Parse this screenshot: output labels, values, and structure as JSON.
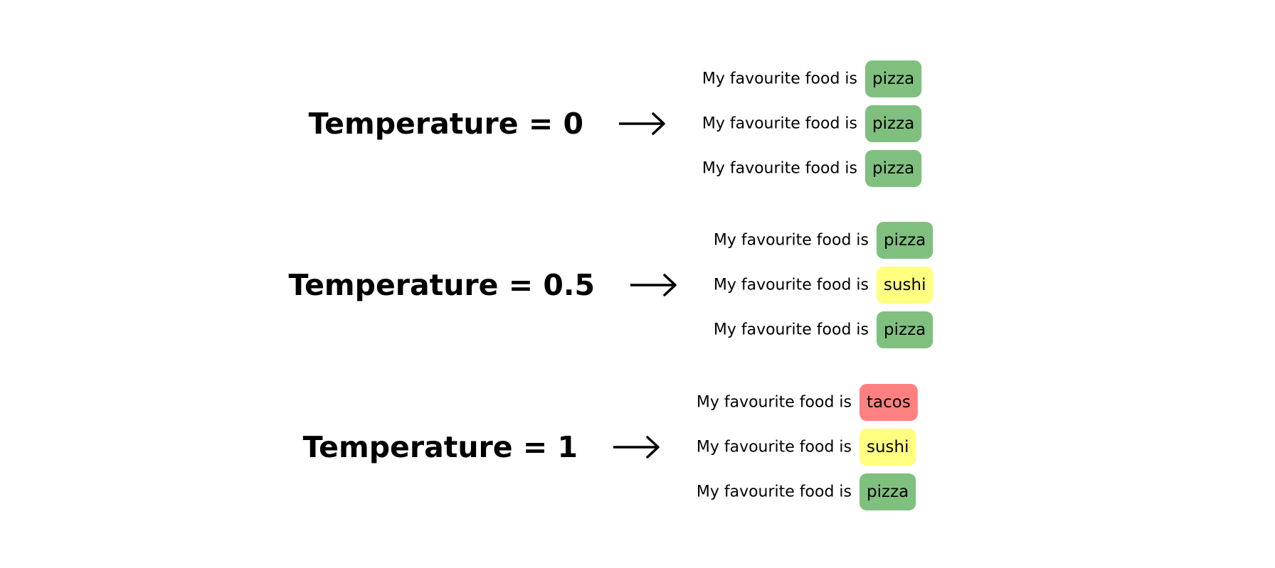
{
  "groups": [
    {
      "label": "Temperature = 0",
      "rows": [
        {
          "prefix": "My favourite food is",
          "token": "pizza",
          "color": "#80c07f"
        },
        {
          "prefix": "My favourite food is",
          "token": "pizza",
          "color": "#80c07f"
        },
        {
          "prefix": "My favourite food is",
          "token": "pizza",
          "color": "#80c07f"
        }
      ]
    },
    {
      "label": "Temperature = 0.5",
      "rows": [
        {
          "prefix": "My favourite food is",
          "token": "pizza",
          "color": "#80c07f"
        },
        {
          "prefix": "My favourite food is",
          "token": "sushi",
          "color": "#ffff80"
        },
        {
          "prefix": "My favourite food is",
          "token": "pizza",
          "color": "#80c07f"
        }
      ]
    },
    {
      "label": "Temperature = 1",
      "rows": [
        {
          "prefix": "My favourite food is",
          "token": "tacos",
          "color": "#ff8080"
        },
        {
          "prefix": "My favourite food is",
          "token": "sushi",
          "color": "#ffff80"
        },
        {
          "prefix": "My favourite food is",
          "token": "pizza",
          "color": "#80c07f"
        }
      ]
    }
  ]
}
